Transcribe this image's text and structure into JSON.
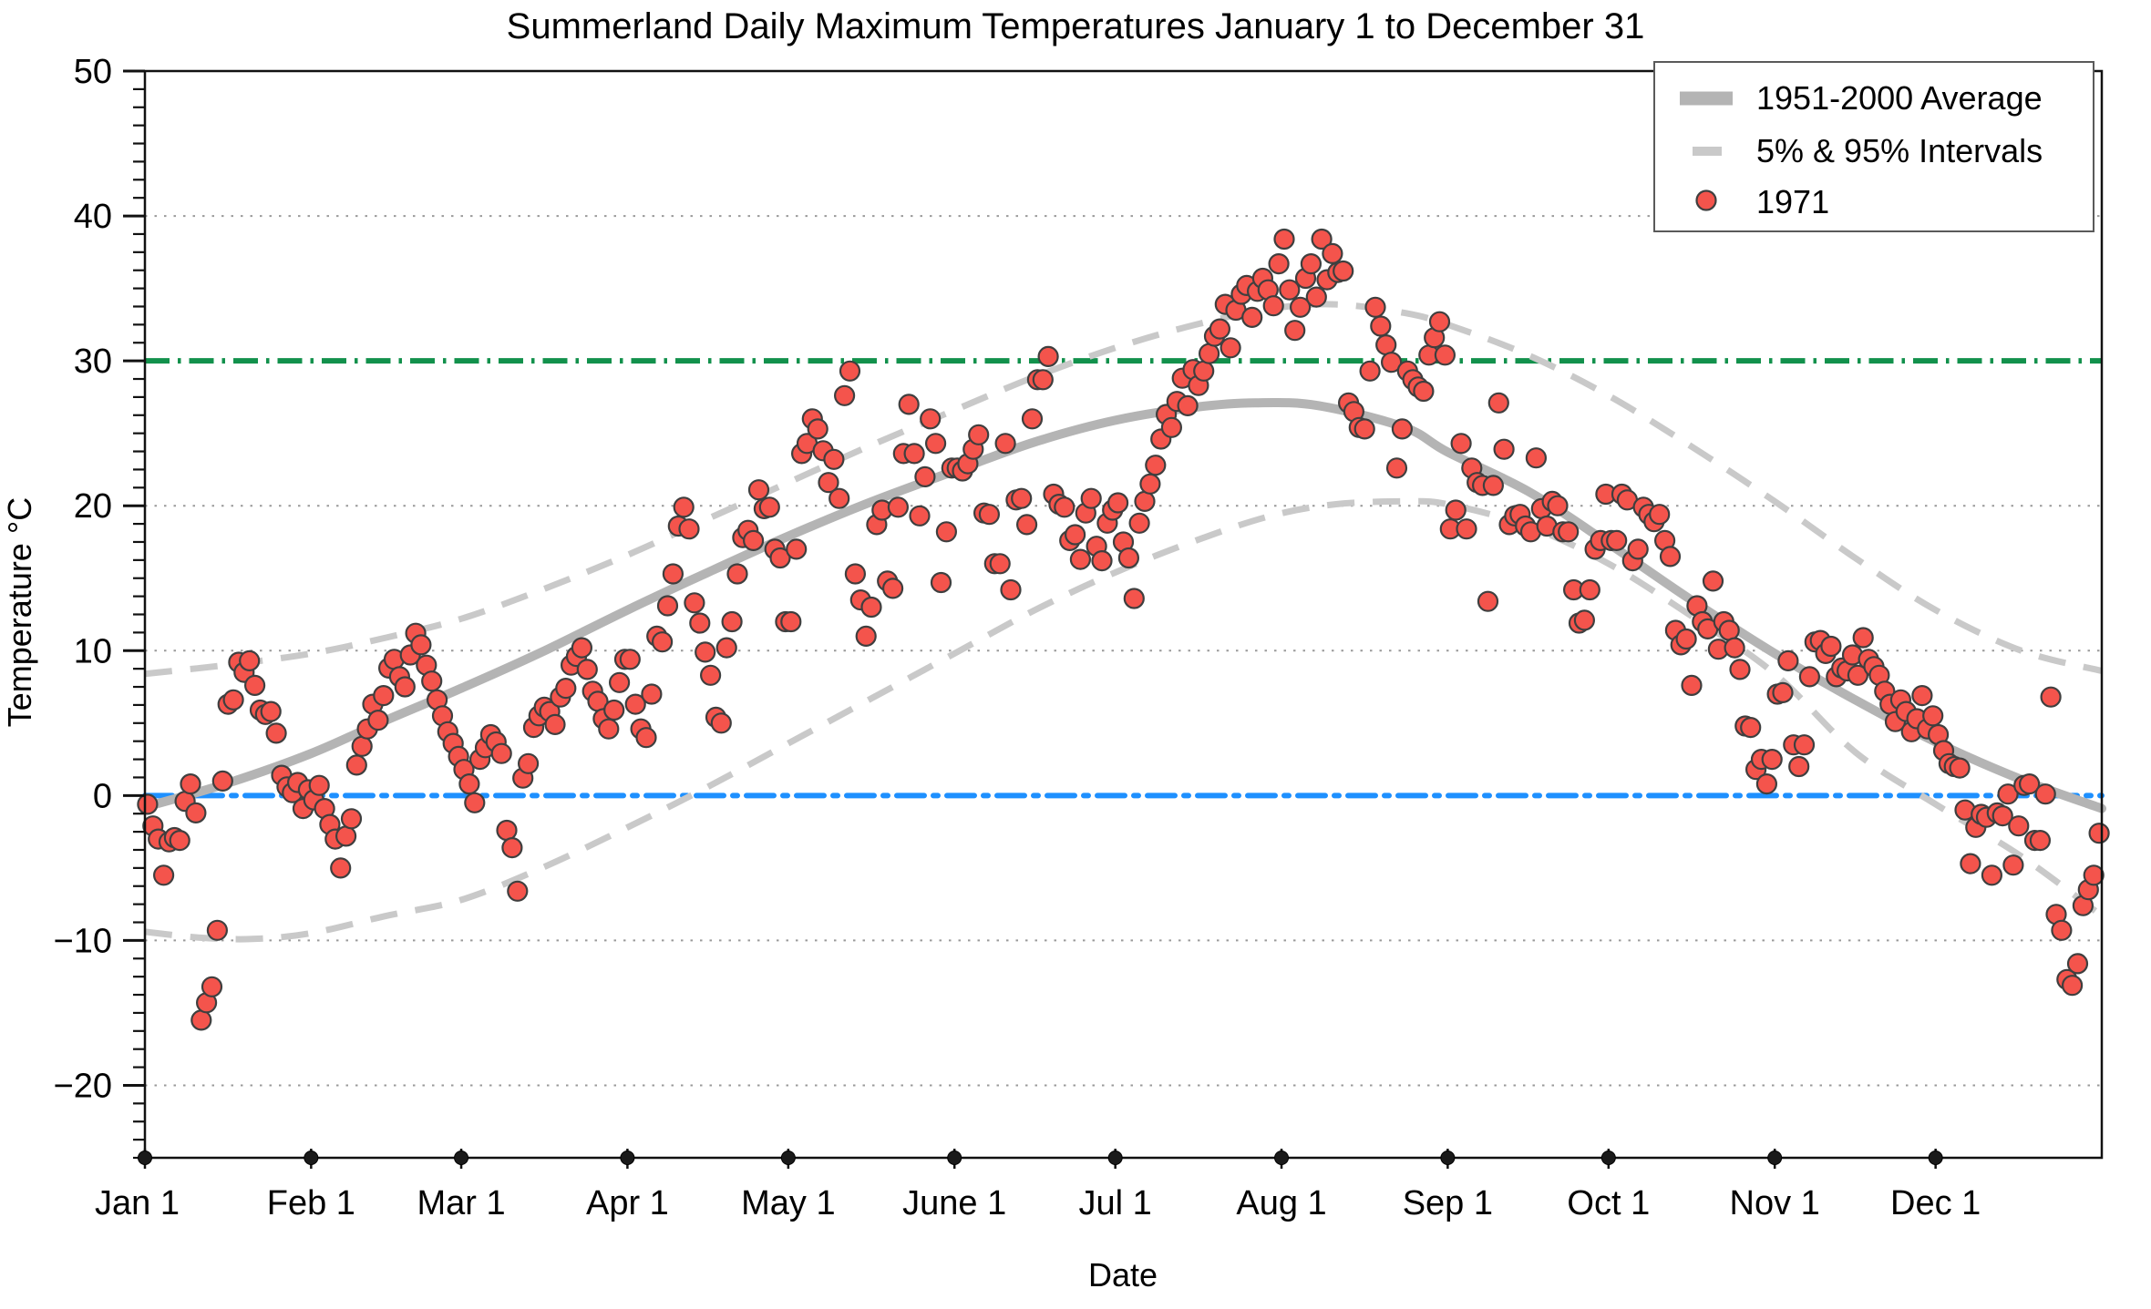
{
  "title": "Summerland Daily Maximum Temperatures January 1 to December 31",
  "axes": {
    "x_label": "Date",
    "y_label": "Temperature °C",
    "y_min": -25,
    "y_max": 50,
    "y_major_ticks": [
      50,
      40,
      30,
      20,
      10,
      0,
      -10,
      -20
    ],
    "y_gridline_values": [
      40,
      20,
      10,
      -10,
      -20
    ],
    "x_month_ticks": [
      {
        "label": "Jan 1",
        "day": 0
      },
      {
        "label": "Feb 1",
        "day": 31
      },
      {
        "label": "Mar 1",
        "day": 59
      },
      {
        "label": "Apr 1",
        "day": 90
      },
      {
        "label": "May 1",
        "day": 120
      },
      {
        "label": "June 1",
        "day": 151
      },
      {
        "label": "Jul 1",
        "day": 181
      },
      {
        "label": "Aug 1",
        "day": 212
      },
      {
        "label": "Sep 1",
        "day": 243
      },
      {
        "label": "Oct 1",
        "day": 273
      },
      {
        "label": "Nov 1",
        "day": 304
      },
      {
        "label": "Dec 1",
        "day": 334
      }
    ],
    "days_in_year": 365
  },
  "legend": {
    "items": [
      {
        "label": "1951-2000 Average",
        "marker": "thick-line",
        "color": "#b4b4b4"
      },
      {
        "label": "5% & 95% Intervals",
        "marker": "dashed-line",
        "color": "#c9c9c9"
      },
      {
        "label": "1971",
        "marker": "dot",
        "color": "#f4544c"
      }
    ]
  },
  "colors": {
    "scatter_fill": "#f4544c",
    "scatter_stroke": "#3f3f3f",
    "average_line": "#b4b4b4",
    "interval_line": "#c9c9c9",
    "threshold_30_line": "#12914c",
    "freezing_line": "#1e90ff",
    "gridline": "#999999",
    "axis": "#111111"
  },
  "chart_data": {
    "type": "scatter",
    "title": "Summerland Daily Maximum Temperatures January 1 to December 31",
    "xlabel": "Date",
    "ylabel": "Temperature °C",
    "ylim": [
      -25,
      50
    ],
    "xlim_days": [
      0,
      365
    ],
    "grid": "dotted horizontal at major ticks",
    "legend_position": "top-right inside",
    "reference_lines": [
      {
        "name": "30 C threshold",
        "value": 30,
        "color": "#12914c",
        "style": "dash-dot"
      },
      {
        "name": "0 C freezing",
        "value": 0,
        "color": "#1e90ff",
        "style": "dash-dot"
      }
    ],
    "series": [
      {
        "name": "1951-2000 Average",
        "type": "smooth-line",
        "anchors_day_temp": [
          [
            0,
            -0.8
          ],
          [
            15,
            0.8
          ],
          [
            31,
            2.9
          ],
          [
            45,
            5.2
          ],
          [
            59,
            7.4
          ],
          [
            74,
            9.9
          ],
          [
            90,
            12.8
          ],
          [
            105,
            15.4
          ],
          [
            120,
            17.9
          ],
          [
            135,
            20.2
          ],
          [
            151,
            22.4
          ],
          [
            166,
            24.4
          ],
          [
            181,
            25.9
          ],
          [
            196,
            26.8
          ],
          [
            207,
            27.1
          ],
          [
            219,
            26.9
          ],
          [
            235,
            25.4
          ],
          [
            243,
            23.7
          ],
          [
            258,
            21.0
          ],
          [
            273,
            17.4
          ],
          [
            288,
            13.6
          ],
          [
            304,
            9.8
          ],
          [
            319,
            6.6
          ],
          [
            334,
            3.7
          ],
          [
            350,
            1.1
          ],
          [
            365,
            -0.9
          ]
        ]
      },
      {
        "name": "95% Interval",
        "type": "smooth-dashed-line",
        "anchors_day_temp": [
          [
            0,
            8.4
          ],
          [
            15,
            9.0
          ],
          [
            31,
            9.8
          ],
          [
            45,
            10.9
          ],
          [
            59,
            12.2
          ],
          [
            74,
            14.2
          ],
          [
            90,
            16.6
          ],
          [
            105,
            19.1
          ],
          [
            120,
            21.6
          ],
          [
            135,
            24.1
          ],
          [
            151,
            26.6
          ],
          [
            166,
            28.9
          ],
          [
            181,
            30.9
          ],
          [
            196,
            32.5
          ],
          [
            210,
            33.6
          ],
          [
            222,
            33.9
          ],
          [
            235,
            33.3
          ],
          [
            243,
            32.5
          ],
          [
            258,
            30.4
          ],
          [
            273,
            27.6
          ],
          [
            288,
            24.2
          ],
          [
            304,
            20.3
          ],
          [
            319,
            16.4
          ],
          [
            334,
            12.8
          ],
          [
            350,
            10.0
          ],
          [
            365,
            8.6
          ]
        ]
      },
      {
        "name": "5% Interval",
        "type": "smooth-dashed-line",
        "anchors_day_temp": [
          [
            0,
            -9.4
          ],
          [
            10,
            -9.8
          ],
          [
            20,
            -9.9
          ],
          [
            31,
            -9.5
          ],
          [
            45,
            -8.3
          ],
          [
            59,
            -7.2
          ],
          [
            74,
            -5.0
          ],
          [
            90,
            -2.2
          ],
          [
            105,
            0.6
          ],
          [
            120,
            3.6
          ],
          [
            135,
            6.6
          ],
          [
            151,
            9.8
          ],
          [
            166,
            12.8
          ],
          [
            181,
            15.4
          ],
          [
            196,
            17.6
          ],
          [
            210,
            19.3
          ],
          [
            222,
            20.1
          ],
          [
            235,
            20.3
          ],
          [
            243,
            20.1
          ],
          [
            258,
            18.6
          ],
          [
            273,
            16.0
          ],
          [
            288,
            12.5
          ],
          [
            304,
            8.4
          ],
          [
            319,
            3.0
          ],
          [
            334,
            -0.6
          ],
          [
            350,
            -4.2
          ],
          [
            365,
            -8.3
          ]
        ]
      },
      {
        "name": "1971",
        "type": "scatter-daily",
        "daily_max_temps_c": [
          -0.6,
          -2.1,
          -3.0,
          -5.5,
          -3.2,
          -2.9,
          -3.1,
          -0.4,
          0.8,
          -1.2,
          -15.5,
          -14.3,
          -13.2,
          -9.3,
          1.0,
          6.3,
          6.6,
          9.2,
          8.5,
          9.3,
          7.6,
          5.9,
          5.6,
          5.8,
          4.3,
          1.4,
          0.6,
          0.2,
          0.9,
          -0.9,
          0.4,
          -0.3,
          0.7,
          -0.9,
          -2.0,
          -3.0,
          -5.0,
          -2.8,
          -1.6,
          2.1,
          3.4,
          4.6,
          6.3,
          5.2,
          6.9,
          8.8,
          9.4,
          8.2,
          7.5,
          9.7,
          11.2,
          10.4,
          9.0,
          7.9,
          6.6,
          5.5,
          4.4,
          3.6,
          2.7,
          1.8,
          0.8,
          -0.5,
          2.5,
          3.3,
          4.2,
          3.7,
          2.9,
          -2.4,
          -3.6,
          -6.6,
          1.2,
          2.2,
          4.7,
          5.5,
          6.1,
          5.8,
          4.9,
          6.8,
          7.4,
          9.0,
          9.6,
          10.2,
          8.7,
          7.2,
          6.5,
          5.3,
          4.6,
          5.9,
          7.8,
          9.4,
          9.4,
          6.3,
          4.6,
          4.0,
          7.0,
          11.0,
          10.6,
          13.1,
          15.3,
          18.6,
          19.9,
          18.4,
          13.3,
          11.9,
          9.9,
          8.3,
          5.4,
          5.0,
          10.2,
          12.0,
          15.3,
          17.8,
          18.3,
          17.6,
          21.1,
          19.8,
          19.9,
          17.0,
          16.4,
          12.0,
          12.0,
          17.0,
          23.6,
          24.3,
          26.0,
          25.3,
          23.8,
          21.6,
          23.2,
          20.5,
          27.6,
          29.3,
          15.3,
          13.5,
          11.0,
          13.0,
          18.7,
          19.7,
          14.8,
          14.3,
          19.9,
          23.6,
          27.0,
          23.6,
          19.3,
          22.0,
          26.0,
          24.3,
          14.7,
          18.2,
          22.6,
          22.6,
          22.4,
          22.9,
          23.9,
          24.9,
          19.5,
          19.4,
          16.0,
          16.0,
          24.3,
          14.2,
          20.4,
          20.5,
          18.7,
          26.0,
          28.7,
          28.7,
          30.3,
          20.8,
          20.1,
          19.9,
          17.6,
          18.0,
          16.3,
          19.5,
          20.5,
          17.2,
          16.2,
          18.8,
          19.7,
          20.2,
          17.5,
          16.4,
          13.6,
          18.8,
          20.3,
          21.5,
          22.8,
          24.6,
          26.3,
          25.4,
          27.2,
          28.8,
          26.9,
          29.4,
          28.3,
          29.3,
          30.5,
          31.7,
          32.2,
          33.9,
          30.9,
          33.5,
          34.6,
          35.2,
          33.0,
          34.8,
          35.7,
          34.9,
          33.8,
          36.7,
          38.4,
          34.9,
          32.1,
          33.7,
          35.7,
          36.7,
          34.4,
          38.4,
          35.6,
          37.4,
          36.1,
          36.2,
          27.1,
          26.5,
          25.4,
          25.3,
          29.3,
          33.7,
          32.4,
          31.1,
          29.9,
          22.6,
          25.3,
          29.3,
          28.7,
          28.2,
          27.9,
          30.4,
          31.6,
          32.7,
          30.4,
          18.4,
          19.7,
          24.3,
          18.4,
          22.6,
          21.6,
          21.4,
          13.4,
          21.4,
          27.1,
          23.9,
          18.7,
          19.3,
          19.4,
          18.6,
          18.2,
          23.3,
          19.8,
          18.6,
          20.3,
          20.0,
          18.2,
          18.2,
          14.2,
          11.9,
          12.1,
          14.2,
          17.0,
          17.6,
          20.8,
          17.6,
          17.6,
          20.8,
          20.4,
          16.2,
          17.0,
          19.9,
          19.4,
          18.9,
          19.4,
          17.6,
          16.5,
          11.4,
          10.4,
          10.8,
          7.6,
          13.1,
          12.0,
          11.5,
          14.8,
          10.1,
          12.0,
          11.4,
          10.2,
          8.7,
          4.8,
          4.7,
          1.8,
          2.5,
          0.8,
          2.5,
          7.0,
          7.1,
          9.3,
          3.5,
          2.0,
          3.5,
          8.2,
          10.6,
          10.7,
          9.8,
          10.3,
          8.2,
          8.8,
          8.6,
          9.7,
          8.3,
          10.9,
          9.4,
          8.9,
          8.3,
          7.2,
          6.3,
          5.1,
          6.6,
          5.8,
          4.4,
          5.3,
          6.9,
          4.6,
          5.5,
          4.2,
          3.1,
          2.2,
          2.0,
          1.9,
          -1.0,
          -4.7,
          -2.2,
          -1.3,
          -1.5,
          -5.5,
          -1.2,
          -1.4,
          0.1,
          -4.8,
          -2.1,
          0.7,
          0.8,
          -3.1,
          -3.1,
          0.1,
          6.8,
          -8.2,
          -9.3,
          -12.7,
          -13.1,
          -11.6,
          -7.6,
          -6.5,
          -5.5,
          -2.6
        ]
      }
    ]
  }
}
